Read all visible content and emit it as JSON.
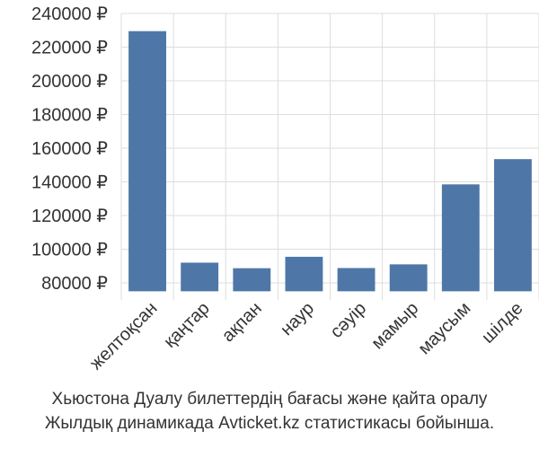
{
  "chart_data": {
    "type": "bar",
    "categories": [
      "желтоқсан",
      "қаңтар",
      "ақпан",
      "наур",
      "сәуір",
      "мамыр",
      "маусым",
      "шілде"
    ],
    "values": [
      229500,
      92000,
      88700,
      95500,
      88800,
      91000,
      138500,
      153500
    ],
    "ylim": [
      75000,
      240000
    ],
    "yticks": [
      80000,
      100000,
      120000,
      140000,
      160000,
      180000,
      200000,
      220000,
      240000
    ],
    "ytick_labels": [
      "80000 ₽",
      "100000 ₽",
      "120000 ₽",
      "140000 ₽",
      "160000 ₽",
      "180000 ₽",
      "200000 ₽",
      "220000 ₽",
      "240000 ₽"
    ],
    "grid": true,
    "bar_color": "#4e77a7"
  },
  "caption": {
    "line1": "Хьюстона Дуалу билеттердің бағасы және қайта оралу",
    "line2": "Жылдық динамикада Avticket.kz статистикасы бойынша."
  }
}
